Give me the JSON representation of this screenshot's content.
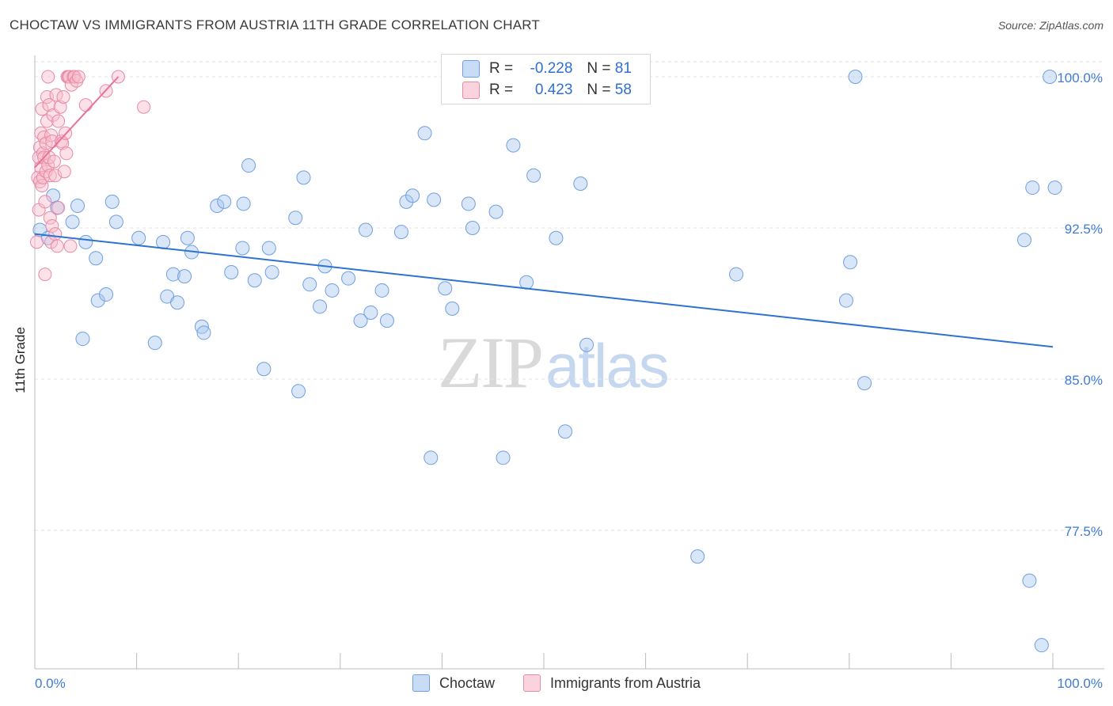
{
  "title": "CHOCTAW VS IMMIGRANTS FROM AUSTRIA 11TH GRADE CORRELATION CHART",
  "source": "Source: ZipAtlas.com",
  "watermark": {
    "zip": "ZIP",
    "atlas": "atlas"
  },
  "legend": {
    "r_label": "R =",
    "n_label": "N =",
    "rows": [
      {
        "r": "-0.228",
        "n": "81",
        "fill": "#a8c8f0",
        "stroke": "#6f9fe0"
      },
      {
        "r": "0.423",
        "n": "58",
        "fill": "#f8bccd",
        "stroke": "#e889a6"
      }
    ]
  },
  "bottom_legend": [
    "Choctaw",
    "Immigrants from Austria"
  ],
  "chart_data": {
    "type": "scatter",
    "title": "CHOCTAW VS IMMIGRANTS FROM AUSTRIA 11TH GRADE CORRELATION CHART",
    "xlabel": "",
    "ylabel": "11th Grade",
    "xlim": [
      0,
      100
    ],
    "ylim": [
      71,
      101.5
    ],
    "x_tick_labels": [
      "0.0%",
      "100.0%"
    ],
    "y_ticks": [
      77.5,
      85.0,
      92.5,
      100.0
    ],
    "y_tick_labels": [
      "77.5%",
      "85.0%",
      "92.5%",
      "100.0%"
    ],
    "grid": true,
    "colors": {
      "choctaw": "#4a84d4",
      "choctaw_line": "#2e73d0",
      "austria": "#e8799c",
      "austria_line": "#e8719a",
      "ytick": "#3f7ad6"
    },
    "series": [
      {
        "name": "Choctaw",
        "trend": {
          "x": [
            0,
            100
          ],
          "y": [
            92.2,
            86.6
          ]
        },
        "x": [
          0.5,
          1.3,
          1.8,
          2.2,
          3.7,
          4.2,
          4.7,
          5.0,
          6.0,
          6.2,
          7.0,
          7.6,
          8.0,
          10.2,
          11.8,
          12.6,
          13.0,
          13.6,
          14.0,
          14.7,
          15.0,
          15.4,
          16.4,
          16.6,
          17.9,
          18.6,
          19.3,
          20.4,
          20.5,
          21.0,
          21.6,
          22.5,
          23.0,
          23.3,
          25.6,
          25.9,
          26.4,
          27.0,
          28.0,
          28.5,
          29.2,
          30.8,
          32.0,
          32.5,
          33.0,
          34.1,
          34.6,
          36.0,
          36.5,
          37.1,
          38.3,
          38.9,
          39.2,
          40.3,
          41.0,
          42.6,
          43.0,
          44.2,
          45.3,
          46.0,
          47.0,
          48.3,
          49.0,
          50.9,
          51.2,
          52.1,
          53.6,
          54.2,
          56.1,
          65.1,
          68.9,
          79.7,
          80.1,
          80.6,
          81.5,
          97.2,
          97.7,
          98.0,
          98.9,
          99.7,
          100.2
        ],
        "y": [
          92.4,
          92.0,
          94.1,
          93.5,
          92.8,
          93.6,
          87.0,
          91.8,
          91.0,
          88.9,
          89.2,
          93.8,
          92.8,
          92.0,
          86.8,
          91.8,
          89.1,
          90.2,
          88.8,
          90.1,
          92.0,
          91.3,
          87.6,
          87.3,
          93.6,
          93.8,
          90.3,
          91.5,
          93.7,
          95.6,
          89.9,
          85.5,
          91.5,
          90.3,
          93.0,
          84.4,
          95.0,
          89.7,
          88.6,
          90.6,
          89.4,
          90.0,
          87.9,
          92.4,
          88.3,
          89.4,
          87.9,
          92.3,
          93.8,
          94.1,
          97.2,
          81.1,
          93.9,
          89.5,
          88.5,
          93.7,
          92.5,
          100.0,
          93.3,
          81.1,
          96.6,
          89.8,
          95.1,
          100.0,
          92.0,
          82.4,
          94.7,
          86.7,
          100.0,
          76.2,
          90.2,
          88.9,
          90.8,
          100.0,
          84.8,
          91.9,
          75.0,
          94.5,
          71.8,
          100.0,
          94.5
        ]
      },
      {
        "name": "Immigrants from Austria",
        "trend": {
          "x": [
            0,
            8.2
          ],
          "y": [
            95.5,
            100.0
          ]
        },
        "x": [
          0.2,
          0.3,
          0.4,
          0.4,
          0.5,
          0.5,
          0.6,
          0.6,
          0.7,
          0.7,
          0.8,
          0.8,
          0.9,
          0.9,
          1.0,
          1.0,
          1.1,
          1.1,
          1.2,
          1.2,
          1.3,
          1.3,
          1.4,
          1.4,
          1.5,
          1.5,
          1.6,
          1.6,
          1.7,
          1.7,
          1.8,
          1.9,
          2.0,
          2.0,
          2.1,
          2.2,
          2.3,
          2.3,
          2.5,
          2.6,
          2.7,
          2.8,
          2.9,
          3.0,
          3.1,
          3.2,
          3.3,
          3.4,
          3.5,
          3.6,
          3.8,
          3.9,
          4.1,
          4.3,
          5.0,
          7.0,
          8.2,
          10.7
        ],
        "y": [
          91.8,
          95.0,
          96.0,
          93.4,
          96.5,
          94.8,
          95.5,
          97.2,
          94.6,
          98.4,
          96.2,
          95.0,
          97.0,
          96.0,
          90.2,
          93.8,
          95.3,
          96.7,
          99.0,
          97.8,
          95.6,
          100.0,
          98.6,
          96.0,
          95.1,
          93.0,
          91.8,
          97.1,
          92.6,
          96.8,
          98.1,
          95.8,
          92.2,
          95.1,
          99.1,
          91.6,
          97.8,
          93.5,
          98.5,
          96.8,
          96.7,
          99.0,
          95.3,
          97.2,
          96.2,
          100.0,
          100.0,
          100.0,
          91.6,
          99.6,
          100.0,
          100.0,
          99.8,
          100.0,
          98.6,
          99.3,
          100.0,
          98.5
        ]
      }
    ]
  }
}
